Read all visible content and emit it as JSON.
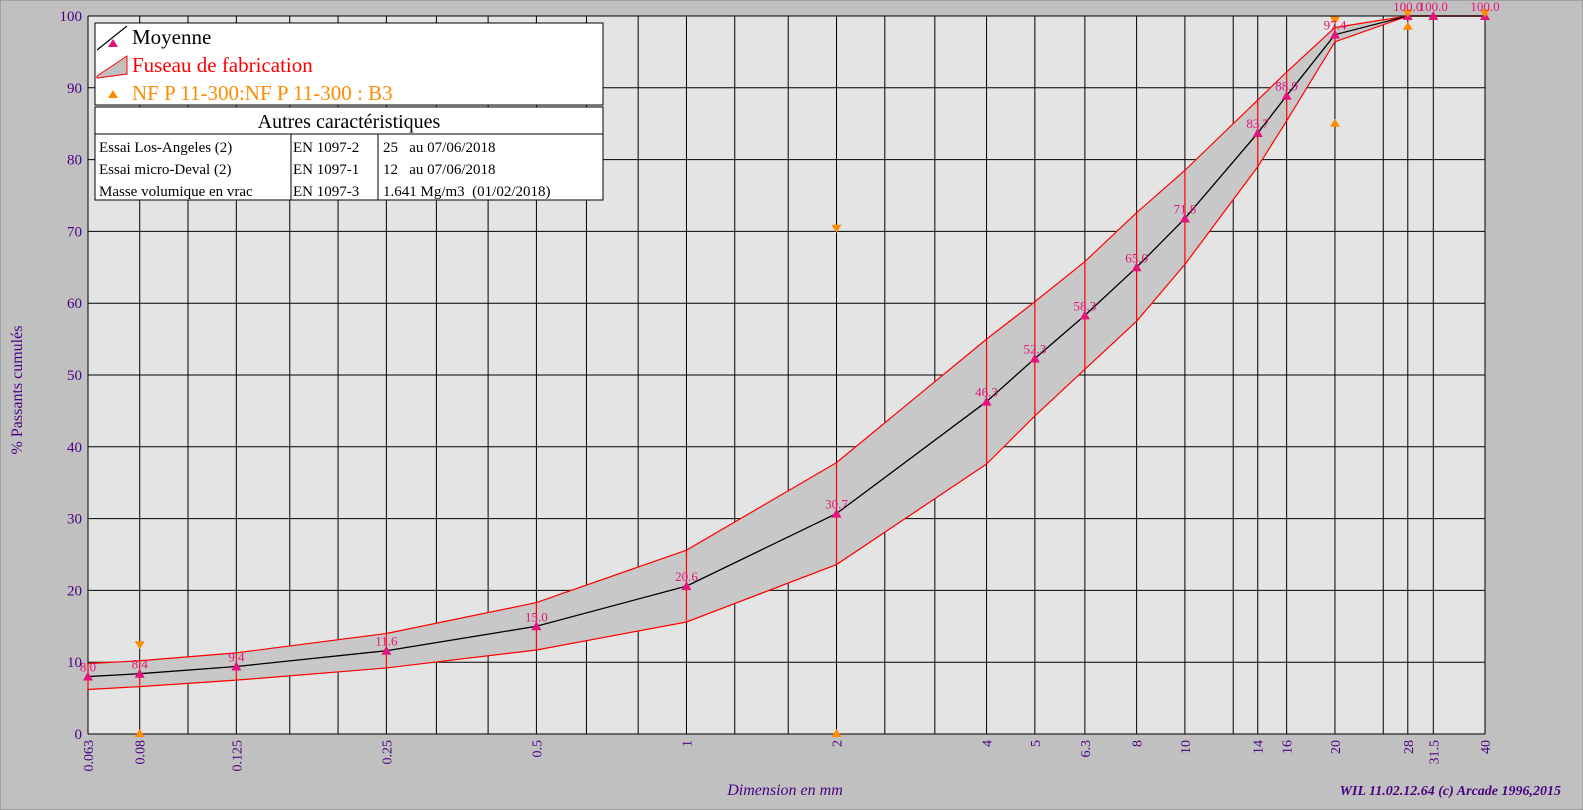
{
  "chart_data": {
    "type": "line",
    "xscale": "log",
    "xlabel": "Dimension en mm",
    "ylabel": "% Passants cumulés",
    "xlim": [
      0.063,
      40
    ],
    "ylim": [
      0,
      100
    ],
    "yticks": [
      0,
      10,
      20,
      30,
      40,
      50,
      60,
      70,
      80,
      90,
      100
    ],
    "xticks": [
      "0.063",
      "0.08",
      "0.125",
      "0.25",
      "0.5",
      "1",
      "2",
      "4",
      "5",
      "6.3",
      "8",
      "10",
      "14",
      "16",
      "20",
      "28",
      "31.5",
      "40"
    ],
    "grid": true,
    "legend_position": "top-left",
    "footer": "WIL 11.02.12.64 (c) Arcade 1996,2015",
    "series": [
      {
        "name": "Moyenne",
        "color": "#000000",
        "x": [
          0.063,
          0.08,
          0.125,
          0.25,
          0.5,
          1,
          2,
          4,
          5,
          6.3,
          8,
          10,
          14,
          16,
          20,
          28,
          31.5,
          40
        ],
        "y": [
          8.0,
          8.4,
          9.4,
          11.6,
          15.0,
          20.6,
          30.7,
          46.3,
          52.3,
          58.3,
          65.0,
          71.8,
          83.7,
          88.9,
          97.4,
          100.0,
          100.0,
          100.0
        ],
        "labels": [
          "8.0",
          "8.4",
          "9.4",
          "11.6",
          "15.0",
          "20.6",
          "30.7",
          "46.3",
          "52.3",
          "58.3",
          "65.0",
          "71.8",
          "83.7",
          "88.9",
          "97.4",
          "100.0",
          "100.0",
          "100.0"
        ]
      },
      {
        "name": "Fuseau de fabrication",
        "color": "#ff0000",
        "fill": "#c8c8c8",
        "x": [
          0.063,
          0.08,
          0.125,
          0.25,
          0.5,
          1,
          2,
          4,
          5,
          6.3,
          8,
          10,
          14,
          16,
          20,
          28,
          31.5,
          40
        ],
        "upper": [
          9.8,
          10.2,
          11.3,
          14.0,
          18.3,
          25.6,
          37.8,
          55.0,
          60.2,
          65.8,
          72.6,
          78.5,
          88.3,
          92.2,
          98.4,
          100,
          100,
          100
        ],
        "lower": [
          6.2,
          6.6,
          7.5,
          9.2,
          11.7,
          15.6,
          23.6,
          37.6,
          44.3,
          50.8,
          57.5,
          65.4,
          79.0,
          85.4,
          96.4,
          100,
          100,
          100
        ]
      },
      {
        "name": "NF P 11-300:NF P 11-300 : B3",
        "color": "#ff8c00",
        "min_x": [
          0.08,
          2,
          20,
          28
        ],
        "min_y": [
          0,
          0,
          85,
          98.5
        ],
        "max_x": [
          0.08,
          2,
          20,
          28,
          40
        ],
        "max_y": [
          12.5,
          70.5,
          99.5,
          100.5,
          100.5
        ]
      }
    ]
  },
  "info_table": {
    "title": "Autres caractéristiques",
    "rows": [
      [
        "Essai Los-Angeles (2)",
        "EN 1097-2",
        "25   au 07/06/2018"
      ],
      [
        "Essai micro-Deval (2)",
        "EN 1097-1",
        "12   au 07/06/2018"
      ],
      [
        "Masse volumique en vrac",
        "EN 1097-3",
        "1.641 Mg/m3  (01/02/2018)"
      ]
    ]
  },
  "colors": {
    "background": "#c0c0c0",
    "plot_bg": "#e4e4e4",
    "axis_text": "#4b0082",
    "marker": "#e3157a",
    "envelope": "#ff0000",
    "spec": "#ff8c00"
  }
}
